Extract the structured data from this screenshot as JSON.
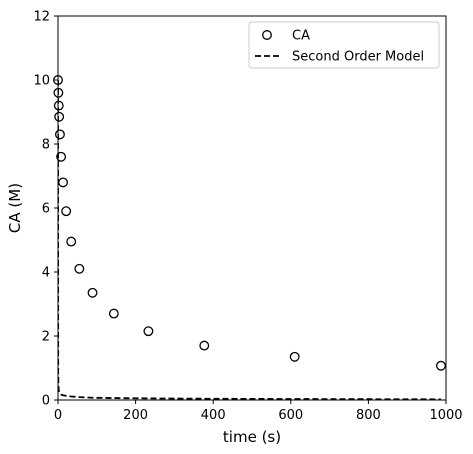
{
  "chart_data": {
    "type": "scatter",
    "xlabel": "time (s)",
    "ylabel": "CA (M)",
    "xlim": [
      0,
      1000
    ],
    "ylim": [
      0,
      12
    ],
    "xticks": [
      0,
      200,
      400,
      600,
      800,
      1000
    ],
    "yticks": [
      0,
      2,
      4,
      6,
      8,
      10,
      12
    ],
    "xtick_labels": [
      "0",
      "200",
      "400",
      "600",
      "800",
      "1000"
    ],
    "ytick_labels": [
      "0",
      "2",
      "4",
      "6",
      "8",
      "10",
      "12"
    ],
    "grid": false,
    "legend": {
      "placement": "top-right",
      "entries": [
        {
          "label": "CA",
          "marker": "open-circle"
        },
        {
          "label": "Second Order Model",
          "marker": "dashed-line"
        }
      ]
    },
    "series": [
      {
        "name": "CA",
        "kind": "scatter",
        "marker": "open-circle",
        "color": "#000000",
        "x": [
          0,
          1,
          2,
          3,
          5,
          8,
          13,
          21,
          34,
          55,
          89,
          144,
          233,
          377,
          610,
          987
        ],
        "y": [
          10.0,
          9.6,
          9.2,
          8.85,
          8.3,
          7.6,
          6.8,
          5.9,
          4.95,
          4.1,
          3.35,
          2.7,
          2.15,
          1.7,
          1.35,
          1.07
        ]
      },
      {
        "name": "Second Order Model",
        "kind": "line",
        "style": "dashed",
        "color": "#000000",
        "x": [
          0,
          0.5,
          1,
          1.5,
          2,
          3,
          5,
          8,
          13,
          21,
          34,
          55,
          89,
          144,
          233,
          377,
          610,
          987
        ],
        "y": [
          10.0,
          0.9,
          0.5,
          0.38,
          0.3,
          0.24,
          0.2,
          0.17,
          0.15,
          0.13,
          0.11,
          0.09,
          0.07,
          0.06,
          0.05,
          0.04,
          0.03,
          0.02
        ]
      }
    ]
  }
}
